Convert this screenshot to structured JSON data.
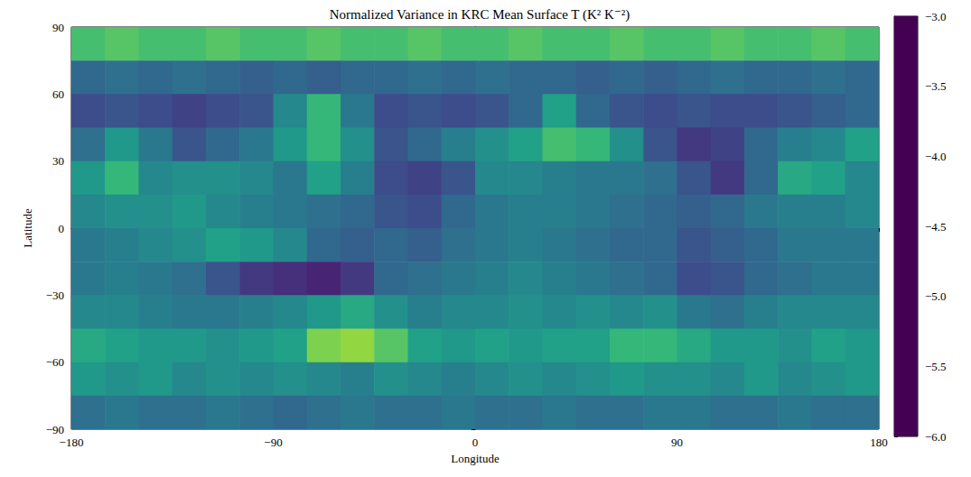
{
  "chart_data": {
    "type": "heatmap",
    "title": "Normalized Variance in KRC Mean Surface T (K² K⁻²)",
    "xlabel": "Longitude",
    "ylabel": "Latitude",
    "xlim": [
      -180,
      180
    ],
    "xticks": [
      {
        "value": -180,
        "label": "−180"
      },
      {
        "value": -90,
        "label": "−90"
      },
      0,
      90,
      180
    ],
    "ylim": [
      -90,
      90
    ],
    "yticks": [
      {
        "value": -90,
        "label": "−90"
      },
      {
        "value": -60,
        "label": "−60"
      },
      {
        "value": -30,
        "label": "−30"
      },
      0,
      30,
      60,
      90
    ],
    "x": [
      -172.5,
      -157.5,
      -142.5,
      -127.5,
      -112.5,
      -97.5,
      -82.5,
      -67.5,
      -52.5,
      -37.5,
      -22.5,
      -7.5,
      7.5,
      22.5,
      37.5,
      52.5,
      67.5,
      82.5,
      97.5,
      112.5,
      127.5,
      142.5,
      157.5,
      172.5
    ],
    "y": [
      82.5,
      67.5,
      52.5,
      37.5,
      22.5,
      7.5,
      -7.5,
      -22.5,
      -37.5,
      -52.5,
      -67.5,
      -82.5
    ],
    "values": [
      [
        -3.9,
        -3.8,
        -3.9,
        -3.9,
        -3.8,
        -3.9,
        -3.9,
        -3.8,
        -3.9,
        -3.9,
        -3.8,
        -3.9,
        -3.9,
        -3.8,
        -3.9,
        -3.9,
        -3.8,
        -3.9,
        -3.9,
        -3.8,
        -3.9,
        -3.9,
        -3.8,
        -3.9
      ],
      [
        -5.0,
        -4.9,
        -5.0,
        -4.9,
        -5.0,
        -5.1,
        -5.0,
        -5.1,
        -5.0,
        -5.0,
        -4.9,
        -5.0,
        -4.9,
        -5.0,
        -5.0,
        -5.1,
        -5.0,
        -5.1,
        -5.0,
        -4.9,
        -5.0,
        -5.0,
        -4.9,
        -5.0
      ],
      [
        -5.3,
        -5.2,
        -5.3,
        -5.4,
        -5.3,
        -5.2,
        -4.6,
        -4.0,
        -4.8,
        -5.3,
        -5.2,
        -5.3,
        -5.2,
        -5.0,
        -4.3,
        -5.0,
        -5.2,
        -5.3,
        -5.2,
        -5.3,
        -5.3,
        -5.2,
        -5.1,
        -5.0
      ],
      [
        -4.9,
        -4.4,
        -4.8,
        -5.2,
        -5.0,
        -4.8,
        -4.4,
        -4.0,
        -4.5,
        -5.2,
        -5.0,
        -4.7,
        -4.5,
        -4.3,
        -3.9,
        -4.0,
        -4.5,
        -5.2,
        -5.5,
        -5.4,
        -5.0,
        -4.7,
        -4.6,
        -4.3
      ],
      [
        -4.4,
        -4.0,
        -4.6,
        -4.5,
        -4.5,
        -4.6,
        -4.8,
        -4.3,
        -4.7,
        -5.3,
        -5.4,
        -5.2,
        -4.6,
        -4.6,
        -4.7,
        -4.8,
        -4.8,
        -4.9,
        -5.2,
        -5.5,
        -5.0,
        -4.2,
        -4.3,
        -4.6
      ],
      [
        -4.6,
        -4.5,
        -4.5,
        -4.4,
        -4.6,
        -4.7,
        -4.8,
        -4.9,
        -5.0,
        -5.2,
        -5.3,
        -5.0,
        -4.8,
        -4.7,
        -4.7,
        -4.8,
        -4.9,
        -5.0,
        -5.1,
        -5.0,
        -4.8,
        -4.7,
        -4.7,
        -4.6
      ],
      [
        -4.8,
        -4.7,
        -4.6,
        -4.5,
        -4.3,
        -4.4,
        -4.6,
        -5.0,
        -5.1,
        -5.0,
        -5.1,
        -4.9,
        -4.8,
        -4.7,
        -4.8,
        -4.9,
        -5.0,
        -5.0,
        -5.2,
        -5.1,
        -5.0,
        -4.8,
        -4.8,
        -4.8
      ],
      [
        -4.8,
        -4.7,
        -4.8,
        -4.9,
        -5.2,
        -5.5,
        -5.6,
        -5.7,
        -5.5,
        -5.0,
        -4.9,
        -4.8,
        -4.7,
        -4.6,
        -4.7,
        -4.8,
        -4.9,
        -5.0,
        -5.3,
        -5.2,
        -5.0,
        -4.9,
        -4.8,
        -4.8
      ],
      [
        -4.6,
        -4.6,
        -4.7,
        -4.8,
        -4.8,
        -4.7,
        -4.6,
        -4.4,
        -4.2,
        -4.5,
        -4.7,
        -4.6,
        -4.6,
        -4.5,
        -4.6,
        -4.5,
        -4.6,
        -4.5,
        -4.8,
        -4.9,
        -4.7,
        -4.6,
        -4.6,
        -4.6
      ],
      [
        -4.2,
        -4.3,
        -4.4,
        -4.4,
        -4.5,
        -4.4,
        -4.3,
        -3.6,
        -3.5,
        -3.8,
        -4.3,
        -4.4,
        -4.3,
        -4.4,
        -4.3,
        -4.3,
        -4.0,
        -4.0,
        -4.2,
        -4.4,
        -4.4,
        -4.5,
        -4.3,
        -4.4
      ],
      [
        -4.4,
        -4.5,
        -4.4,
        -4.6,
        -4.5,
        -4.6,
        -4.5,
        -4.6,
        -4.7,
        -4.5,
        -4.6,
        -4.7,
        -4.6,
        -4.5,
        -4.6,
        -4.5,
        -4.4,
        -4.5,
        -4.5,
        -4.6,
        -4.4,
        -4.6,
        -4.5,
        -4.4
      ],
      [
        -4.9,
        -4.8,
        -4.9,
        -4.9,
        -4.8,
        -4.9,
        -5.0,
        -4.9,
        -4.8,
        -4.9,
        -4.9,
        -4.8,
        -4.9,
        -4.9,
        -4.8,
        -4.9,
        -4.9,
        -4.8,
        -4.8,
        -4.9,
        -4.9,
        -4.8,
        -4.9,
        -4.9
      ]
    ],
    "colorbar": {
      "range": [
        -6,
        -3
      ],
      "ticks": [
        {
          "value": -6,
          "label": "−6.0"
        },
        {
          "value": -5.5,
          "label": "−5.5"
        },
        {
          "value": -5,
          "label": "−5.0"
        },
        {
          "value": -4.5,
          "label": "−4.5"
        },
        {
          "value": -4,
          "label": "−4.0"
        },
        {
          "value": -3.5,
          "label": "−3.5"
        },
        {
          "value": -3,
          "label": "−3.0"
        }
      ]
    }
  }
}
